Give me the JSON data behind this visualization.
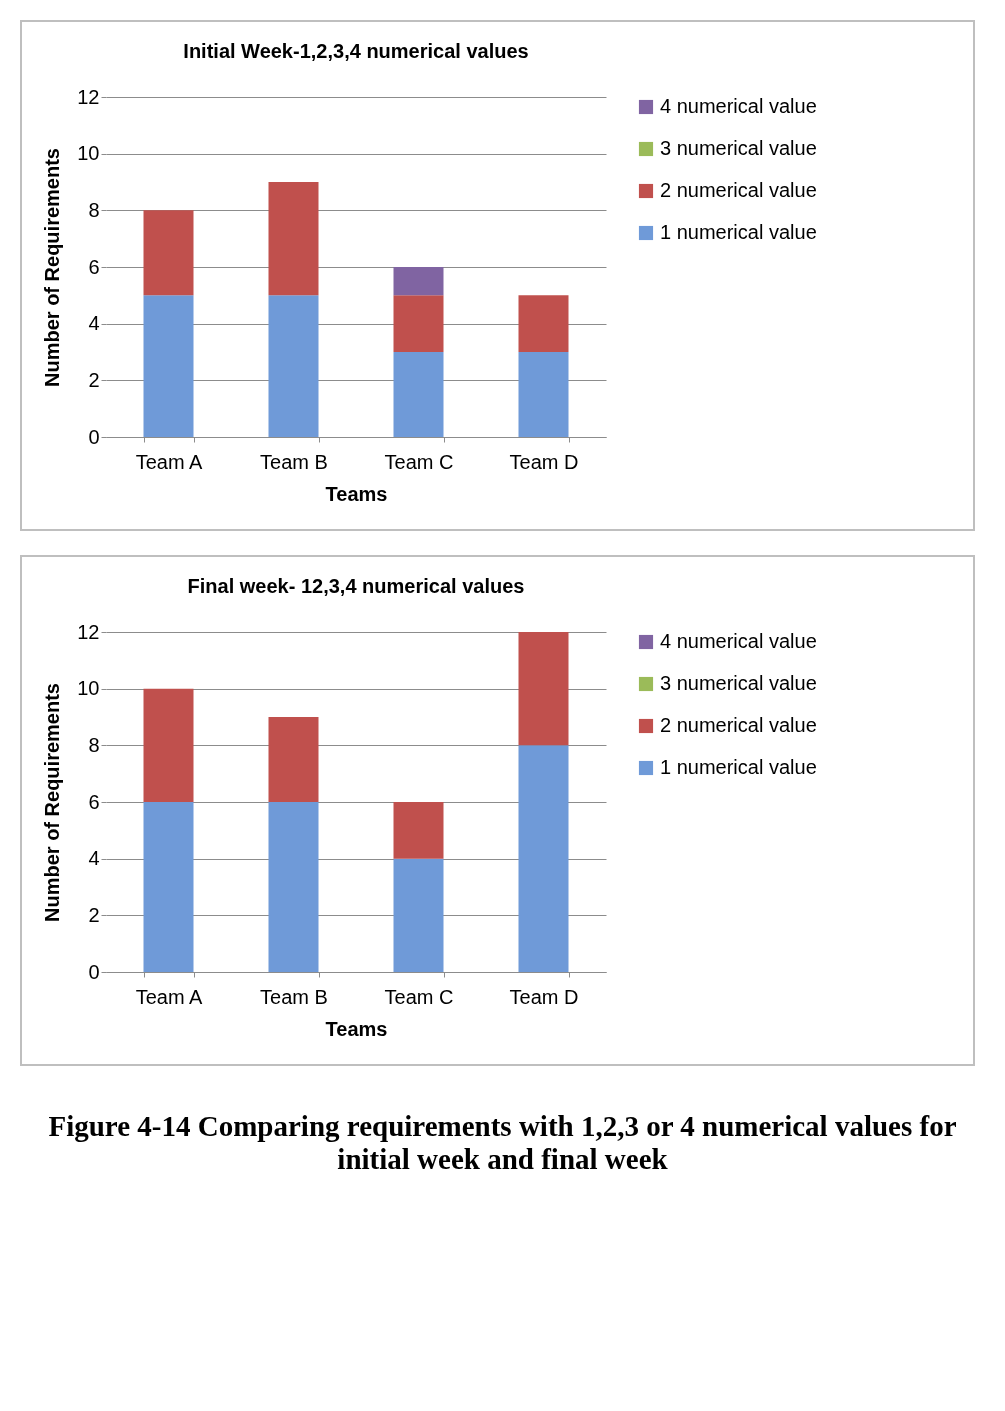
{
  "chart_data": [
    {
      "type": "bar",
      "stacked": true,
      "title": "Initial Week-1,2,3,4 numerical values",
      "xlabel": "Teams",
      "ylabel": "Number of Requirements",
      "categories": [
        "Team A",
        "Team B",
        "Team C",
        "Team D"
      ],
      "ylim": [
        0,
        12
      ],
      "yticks": [
        0,
        2,
        4,
        6,
        8,
        10,
        12
      ],
      "grid": "y",
      "legend": "right",
      "series": [
        {
          "name": "1 numerical value",
          "color": "#6f9ad8",
          "values": [
            5,
            5,
            3,
            3
          ]
        },
        {
          "name": "2 numerical value",
          "color": "#c0504d",
          "values": [
            3,
            4,
            2,
            2
          ]
        },
        {
          "name": "3 numerical value",
          "color": "#9bbb59",
          "values": [
            0,
            0,
            0,
            0
          ]
        },
        {
          "name": "4 numerical value",
          "color": "#8064a2",
          "values": [
            0,
            0,
            1,
            0
          ]
        }
      ]
    },
    {
      "type": "bar",
      "stacked": true,
      "title": "Final week- 12,3,4 numerical values",
      "xlabel": "Teams",
      "ylabel": "Number of Requirements",
      "categories": [
        "Team A",
        "Team B",
        "Team C",
        "Team D"
      ],
      "ylim": [
        0,
        12
      ],
      "yticks": [
        0,
        2,
        4,
        6,
        8,
        10,
        12
      ],
      "grid": "y",
      "legend": "right",
      "annotations": [
        "Figure 4-14 Comparing requirements with 1,2,3 or 4 numerical values for initial week and final week"
      ],
      "series": [
        {
          "name": "1 numerical value",
          "color": "#6f9ad8",
          "values": [
            6,
            6,
            4,
            8
          ]
        },
        {
          "name": "2 numerical value",
          "color": "#c0504d",
          "values": [
            4,
            3,
            2,
            4
          ]
        },
        {
          "name": "3 numerical value",
          "color": "#9bbb59",
          "values": [
            0,
            0,
            0,
            0
          ]
        },
        {
          "name": "4 numerical value",
          "color": "#8064a2",
          "values": [
            0,
            0,
            0,
            0
          ]
        }
      ]
    }
  ]
}
